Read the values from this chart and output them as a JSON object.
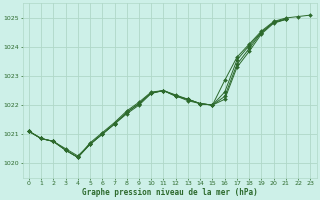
{
  "title": "Graphe pression niveau de la mer (hPa)",
  "background_color": "#cdf0e8",
  "grid_color": "#b0d8c8",
  "line_color": "#2d6a2d",
  "xlim": [
    -0.5,
    23.5
  ],
  "ylim": [
    1019.5,
    1025.5
  ],
  "yticks": [
    1020,
    1021,
    1022,
    1023,
    1024,
    1025
  ],
  "xticks": [
    0,
    1,
    2,
    3,
    4,
    5,
    6,
    7,
    8,
    9,
    10,
    11,
    12,
    13,
    14,
    15,
    16,
    17,
    18,
    19,
    20,
    21,
    22,
    23
  ],
  "series": [
    {
      "x": [
        0,
        1,
        2,
        3,
        4,
        5,
        6,
        7,
        8,
        9,
        10,
        11,
        12,
        13,
        14,
        15,
        16,
        17,
        18,
        19,
        20,
        21,
        22,
        23
      ],
      "y": [
        1021.1,
        1020.85,
        1020.75,
        1020.5,
        1020.25,
        1020.65,
        1021.0,
        1021.35,
        1021.7,
        1022.0,
        1022.4,
        1022.5,
        1022.3,
        1022.2,
        1022.05,
        1022.0,
        1022.45,
        1023.55,
        1024.05,
        1024.5,
        1024.85,
        1024.95,
        null,
        null
      ]
    },
    {
      "x": [
        0,
        1,
        2,
        3,
        4,
        5,
        6,
        7,
        8,
        9,
        10,
        11,
        12,
        13,
        14,
        15,
        16,
        17,
        18,
        19,
        20,
        21,
        22,
        23
      ],
      "y": [
        1021.1,
        1020.85,
        1020.75,
        1020.45,
        1020.2,
        1020.7,
        1021.05,
        1021.4,
        1021.8,
        1022.1,
        1022.45,
        1022.5,
        1022.35,
        1022.2,
        1022.05,
        1022.0,
        1022.2,
        1023.3,
        1023.85,
        1024.45,
        1024.82,
        1024.95,
        null,
        null
      ]
    },
    {
      "x": [
        0,
        1,
        2,
        3,
        4,
        5,
        6,
        7,
        8,
        9,
        10,
        11,
        12,
        13,
        14,
        15,
        16,
        17,
        18,
        19,
        20,
        21,
        22,
        23
      ],
      "y": [
        1021.1,
        1020.85,
        1020.75,
        1020.45,
        1020.2,
        1020.65,
        1021.0,
        1021.35,
        1021.75,
        1022.05,
        1022.42,
        1022.5,
        1022.32,
        1022.2,
        1022.05,
        1022.0,
        1022.3,
        1023.4,
        1023.95,
        1024.5,
        1024.85,
        1024.97,
        null,
        null
      ]
    },
    {
      "x": [
        0,
        1,
        2,
        3,
        4,
        5,
        6,
        7,
        8,
        9,
        10,
        11,
        12,
        13,
        14,
        15,
        16,
        17,
        18,
        19,
        20,
        21,
        22,
        23
      ],
      "y": [
        1021.1,
        1020.85,
        1020.75,
        1020.45,
        1020.2,
        1020.65,
        1021.0,
        1021.35,
        1021.75,
        1022.05,
        1022.42,
        1022.5,
        1022.32,
        1022.15,
        1022.05,
        1022.0,
        1022.85,
        1023.65,
        1024.1,
        1024.55,
        1024.88,
        1025.0,
        1025.05,
        1025.1
      ]
    }
  ]
}
